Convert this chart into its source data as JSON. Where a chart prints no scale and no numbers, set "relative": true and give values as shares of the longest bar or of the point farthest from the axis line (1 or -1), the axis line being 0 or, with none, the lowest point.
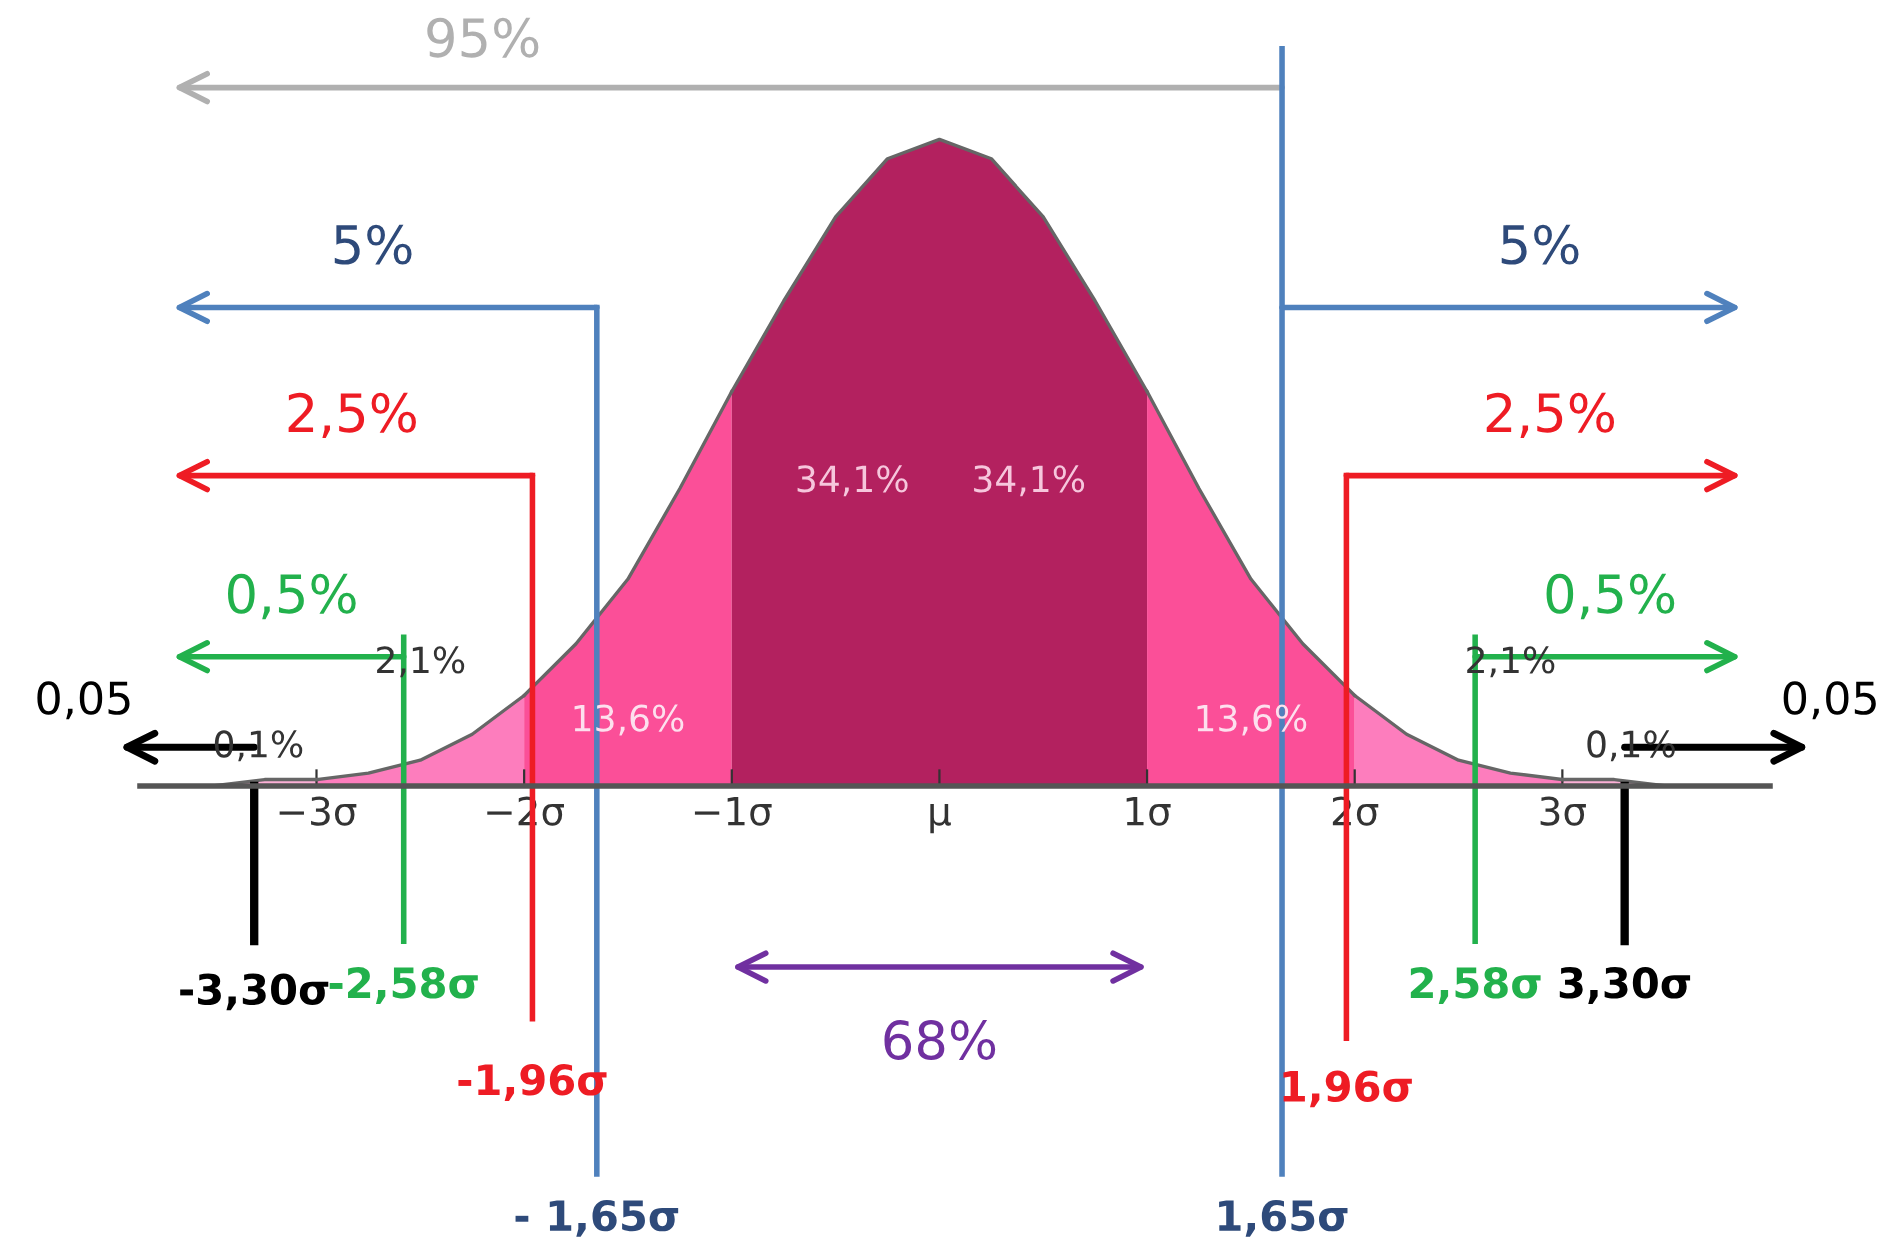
{
  "chart_data": {
    "type": "area",
    "relative": true,
    "xlim": [
      -3.85,
      4.0
    ],
    "xticks": [
      {
        "value": -3,
        "label": "−3σ"
      },
      {
        "value": -2,
        "label": "−2σ"
      },
      {
        "value": -1,
        "label": "−1σ"
      },
      {
        "value": 0,
        "label": "μ"
      },
      {
        "value": 1,
        "label": "1σ"
      },
      {
        "value": 2,
        "label": "2σ"
      },
      {
        "value": 3,
        "label": "3σ"
      }
    ],
    "series": [
      {
        "color": "#fbb0d6",
        "x": [
          -3.85,
          -3.5,
          -3.25,
          -3
        ],
        "values": [
          0,
          0,
          0.01,
          0.01
        ]
      },
      {
        "color": "#fd7dbd",
        "x": [
          -3,
          -2.75,
          -2.5,
          -2.25,
          -2
        ],
        "values": [
          0.01,
          0.02,
          0.04,
          0.08,
          0.14
        ]
      },
      {
        "color": "#fb4f98",
        "x": [
          -2,
          -1.75,
          -1.5,
          -1.25,
          -1
        ],
        "values": [
          0.14,
          0.22,
          0.32,
          0.46,
          0.61
        ]
      },
      {
        "color": "#b3215f",
        "x": [
          -1,
          -0.75,
          -0.5,
          -0.25,
          0,
          0.25,
          0.5,
          0.75,
          1
        ],
        "values": [
          0.61,
          0.75,
          0.88,
          0.97,
          1,
          0.97,
          0.88,
          0.75,
          0.61
        ]
      },
      {
        "color": "#fb4f98",
        "x": [
          1,
          1.25,
          1.5,
          1.75,
          2
        ],
        "values": [
          0.61,
          0.46,
          0.32,
          0.22,
          0.14
        ]
      },
      {
        "color": "#fd7dbd",
        "x": [
          2,
          2.25,
          2.5,
          2.75,
          3
        ],
        "values": [
          0.14,
          0.08,
          0.04,
          0.02,
          0.01
        ]
      },
      {
        "color": "#fbb0d6",
        "x": [
          3,
          3.25,
          3.5,
          4.0
        ],
        "values": [
          0.01,
          0.01,
          0,
          0
        ]
      }
    ],
    "ref_lines": [
      {
        "axis": "x",
        "value": -3.3,
        "label": "-3,30σ",
        "color": "#000000"
      },
      {
        "axis": "x",
        "value": -2.58,
        "label": "-2,58σ",
        "color": "#22b14c"
      },
      {
        "axis": "x",
        "value": -1.96,
        "label": "-1,96σ",
        "color": "#ee1c24"
      },
      {
        "axis": "x",
        "value": -1.65,
        "label": "- 1,65σ",
        "color": "#4f81bd"
      },
      {
        "axis": "x",
        "value": 1.65,
        "label": "1,65σ",
        "color": "#4f81bd"
      },
      {
        "axis": "x",
        "value": 1.96,
        "label": "1,96σ",
        "color": "#ee1c24"
      },
      {
        "axis": "x",
        "value": 2.58,
        "label": "2,58σ",
        "color": "#22b14c"
      },
      {
        "axis": "x",
        "value": 3.3,
        "label": "3,30σ",
        "color": "#000000"
      }
    ],
    "annotations": [
      "95%",
      "5%",
      "5%",
      "2,5%",
      "2,5%",
      "0,5%",
      "0,5%",
      "0,05",
      "0,05",
      "68%",
      "34,1%",
      "34,1%",
      "13,6%",
      "13,6%",
      "2,1%",
      "2,1%",
      "0,1%",
      "0,1%"
    ],
    "grid": false,
    "legend": false
  }
}
